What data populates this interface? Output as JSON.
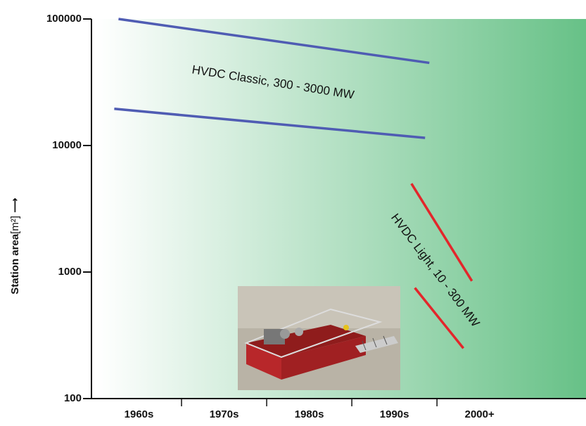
{
  "chart_data": {
    "type": "line",
    "ylabel": "Station area",
    "ylabel_unit": "[m²]",
    "yscale": "log",
    "ylim": [
      100,
      100000
    ],
    "yticks": [
      100,
      1000,
      10000,
      100000
    ],
    "xlim": [
      1960,
      2017.5
    ],
    "xticks": [
      {
        "value": 1965,
        "label": "1960s"
      },
      {
        "value": 1975,
        "label": "1970s"
      },
      {
        "value": 1985,
        "label": "1980s"
      },
      {
        "value": 1995,
        "label": "1990s"
      },
      {
        "value": 2005,
        "label": "2000+"
      }
    ],
    "annotations": [
      "HVDC Classic, 300 - 3000 MW",
      "HVDC Light, 10 - 300 MW"
    ],
    "series": [
      {
        "color": "#4f5cb3",
        "x": [
          1962.6,
          1999.1
        ],
        "values": [
          100000,
          45000
        ]
      },
      {
        "color": "#4f5cb3",
        "x": [
          1962.1,
          1998.6
        ],
        "values": [
          19500,
          11500
        ]
      },
      {
        "color": "#e3262b",
        "x": [
          1997.0,
          2004.1
        ],
        "values": [
          5000,
          850
        ]
      },
      {
        "color": "#e3262b",
        "x": [
          1997.4,
          2003.1
        ],
        "values": [
          750,
          250
        ]
      }
    ]
  }
}
